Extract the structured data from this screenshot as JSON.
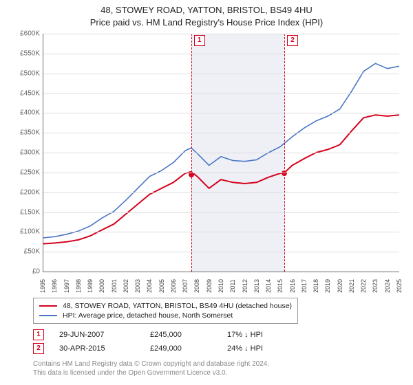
{
  "title_line1": "48, STOWEY ROAD, YATTON, BRISTOL, BS49 4HU",
  "title_line2": "Price paid vs. HM Land Registry's House Price Index (HPI)",
  "chart": {
    "type": "line",
    "background_color": "#ffffff",
    "grid_color": "#dcdcdc",
    "axis_color": "#666666",
    "x_years": [
      1995,
      1996,
      1997,
      1998,
      1999,
      2000,
      2001,
      2002,
      2003,
      2004,
      2005,
      2006,
      2007,
      2008,
      2009,
      2010,
      2011,
      2012,
      2013,
      2014,
      2015,
      2016,
      2017,
      2018,
      2019,
      2020,
      2021,
      2022,
      2023,
      2024,
      2025
    ],
    "xlim": [
      1995,
      2025
    ],
    "ylim": [
      0,
      600000
    ],
    "ytick_step": 50000,
    "yticks": [
      "£0",
      "£50K",
      "£100K",
      "£150K",
      "£200K",
      "£250K",
      "£300K",
      "£350K",
      "£400K",
      "£450K",
      "£500K",
      "£550K",
      "£600K"
    ],
    "band": {
      "start_year": 2007.5,
      "end_year": 2015.33,
      "color": "#eef0f6"
    },
    "series": [
      {
        "name": "property",
        "color": "#d6001c",
        "width": 2,
        "label": "48, STOWEY ROAD, YATTON, BRISTOL, BS49 4HU (detached house)",
        "points": [
          [
            1995,
            70000
          ],
          [
            1996,
            72000
          ],
          [
            1997,
            75000
          ],
          [
            1998,
            80000
          ],
          [
            1999,
            90000
          ],
          [
            2000,
            105000
          ],
          [
            2001,
            120000
          ],
          [
            2002,
            145000
          ],
          [
            2003,
            170000
          ],
          [
            2004,
            195000
          ],
          [
            2005,
            210000
          ],
          [
            2006,
            225000
          ],
          [
            2007,
            248000
          ],
          [
            2007.5,
            252000
          ],
          [
            2008,
            240000
          ],
          [
            2009,
            210000
          ],
          [
            2010,
            232000
          ],
          [
            2011,
            225000
          ],
          [
            2012,
            222000
          ],
          [
            2013,
            225000
          ],
          [
            2014,
            238000
          ],
          [
            2015,
            248000
          ],
          [
            2015.33,
            249000
          ],
          [
            2016,
            268000
          ],
          [
            2017,
            285000
          ],
          [
            2018,
            300000
          ],
          [
            2019,
            308000
          ],
          [
            2020,
            320000
          ],
          [
            2021,
            355000
          ],
          [
            2022,
            388000
          ],
          [
            2023,
            395000
          ],
          [
            2024,
            392000
          ],
          [
            2025,
            395000
          ]
        ]
      },
      {
        "name": "hpi",
        "color": "#4b76c6",
        "width": 1.6,
        "label": "HPI: Average price, detached house, North Somerset",
        "points": [
          [
            1995,
            85000
          ],
          [
            1996,
            88000
          ],
          [
            1997,
            94000
          ],
          [
            1998,
            102000
          ],
          [
            1999,
            115000
          ],
          [
            2000,
            135000
          ],
          [
            2001,
            152000
          ],
          [
            2002,
            180000
          ],
          [
            2003,
            210000
          ],
          [
            2004,
            240000
          ],
          [
            2005,
            255000
          ],
          [
            2006,
            275000
          ],
          [
            2007,
            305000
          ],
          [
            2007.5,
            312000
          ],
          [
            2008,
            298000
          ],
          [
            2009,
            268000
          ],
          [
            2010,
            290000
          ],
          [
            2011,
            280000
          ],
          [
            2012,
            278000
          ],
          [
            2013,
            282000
          ],
          [
            2014,
            300000
          ],
          [
            2015,
            315000
          ],
          [
            2016,
            340000
          ],
          [
            2017,
            362000
          ],
          [
            2018,
            380000
          ],
          [
            2019,
            392000
          ],
          [
            2020,
            410000
          ],
          [
            2021,
            455000
          ],
          [
            2022,
            505000
          ],
          [
            2023,
            525000
          ],
          [
            2024,
            512000
          ],
          [
            2025,
            518000
          ]
        ]
      }
    ],
    "markers": [
      {
        "n": "1",
        "year": 2007.49,
        "color": "#d6001c"
      },
      {
        "n": "2",
        "year": 2015.33,
        "color": "#d6001c"
      }
    ],
    "sales": [
      {
        "year": 2007.49,
        "price": 245000,
        "color": "#d6001c"
      },
      {
        "year": 2015.33,
        "price": 249000,
        "color": "#d6001c"
      }
    ]
  },
  "legend": [
    {
      "color": "#d6001c",
      "label": "48, STOWEY ROAD, YATTON, BRISTOL, BS49 4HU (detached house)"
    },
    {
      "color": "#4b76c6",
      "label": "HPI: Average price, detached house, North Somerset"
    }
  ],
  "events": [
    {
      "n": "1",
      "color": "#d6001c",
      "date": "29-JUN-2007",
      "price": "£245,000",
      "delta": "17% ↓ HPI"
    },
    {
      "n": "2",
      "color": "#d6001c",
      "date": "30-APR-2015",
      "price": "£249,000",
      "delta": "24% ↓ HPI"
    }
  ],
  "footnote_line1": "Contains HM Land Registry data © Crown copyright and database right 2024.",
  "footnote_line2": "This data is licensed under the Open Government Licence v3.0."
}
